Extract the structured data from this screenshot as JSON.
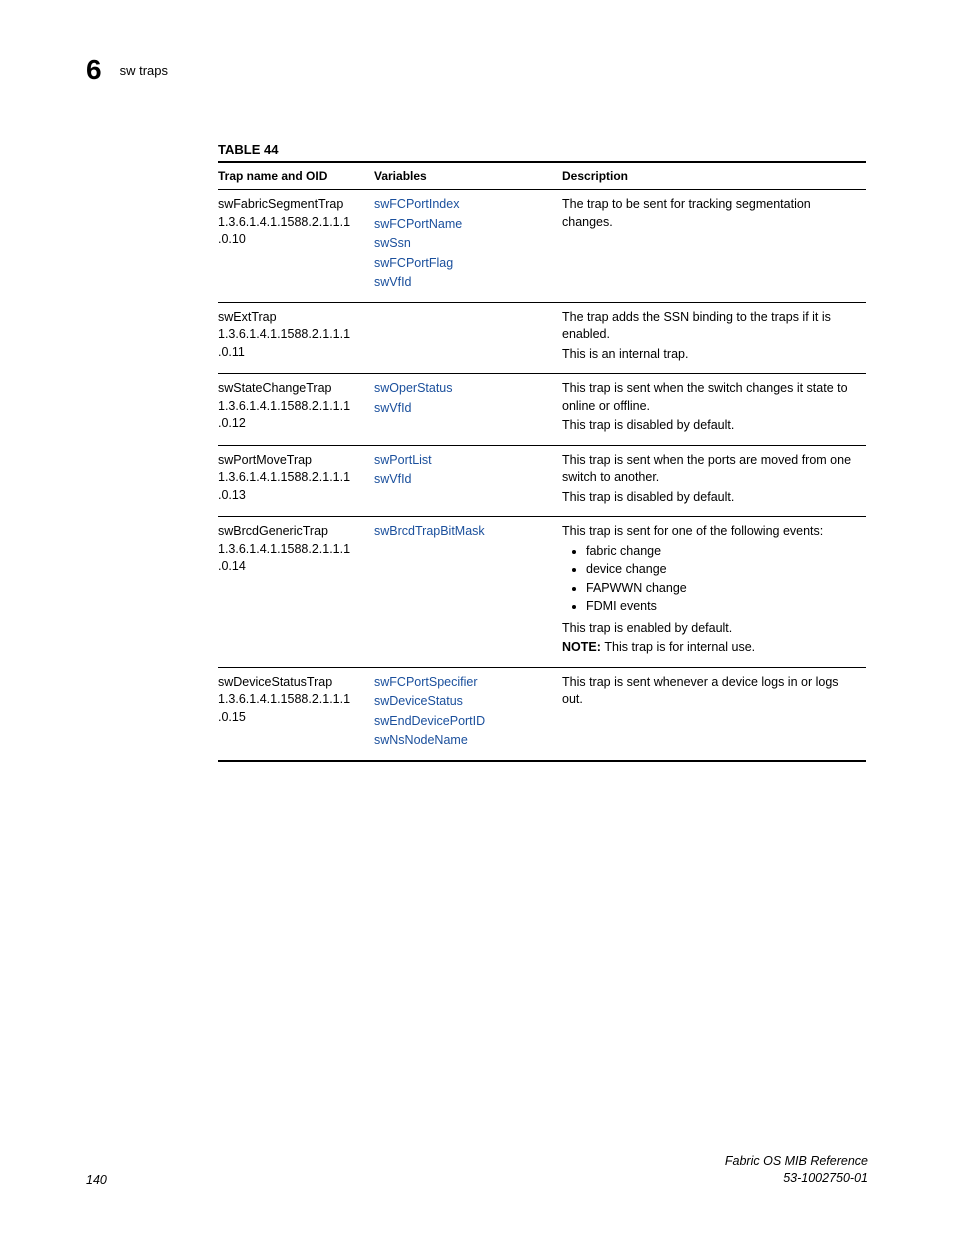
{
  "header": {
    "chapter_number": "6",
    "section_title": "sw traps"
  },
  "table": {
    "caption": "TABLE 44",
    "columns": [
      "Trap name and OID",
      "Variables",
      "Description"
    ],
    "link_color": "#1a4f9c",
    "rows": [
      {
        "name": "swFabricSegmentTrap",
        "oid": "1.3.6.1.4.1.1588.2.1.1.1.0.10",
        "vars": [
          "swFCPortIndex",
          "swFCPortName",
          "swSsn",
          "swFCPortFlag",
          "swVfId"
        ],
        "desc_paras": [
          "The trap to be sent for tracking segmentation changes."
        ],
        "bullets": [],
        "post_paras": [],
        "note": ""
      },
      {
        "name": "swExtTrap",
        "oid": "1.3.6.1.4.1.1588.2.1.1.1.0.11",
        "vars": [],
        "desc_paras": [
          "The trap adds the SSN binding to the traps if it is enabled.",
          "This is an internal trap."
        ],
        "bullets": [],
        "post_paras": [],
        "note": ""
      },
      {
        "name": "swStateChangeTrap",
        "oid": "1.3.6.1.4.1.1588.2.1.1.1.0.12",
        "vars": [
          "swOperStatus",
          "swVfId"
        ],
        "desc_paras": [
          "This trap is sent when the switch changes it state to online or offline.",
          "This trap is disabled by default."
        ],
        "bullets": [],
        "post_paras": [],
        "note": ""
      },
      {
        "name": "swPortMoveTrap",
        "oid": "1.3.6.1.4.1.1588.2.1.1.1.0.13",
        "vars": [
          "swPortList",
          "swVfId"
        ],
        "desc_paras": [
          "This trap is sent when the ports are moved from one switch to another.",
          "This trap is disabled by default."
        ],
        "bullets": [],
        "post_paras": [],
        "note": ""
      },
      {
        "name": "swBrcdGenericTrap",
        "oid": "1.3.6.1.4.1.1588.2.1.1.1.0.14",
        "vars": [
          "swBrcdTrapBitMask"
        ],
        "desc_paras": [
          "This trap is sent for one of the following events:"
        ],
        "bullets": [
          "fabric change",
          "device change",
          "FAPWWN change",
          "FDMI events"
        ],
        "post_paras": [
          "This trap is enabled by default."
        ],
        "note": "This trap is for internal use."
      },
      {
        "name": "swDeviceStatusTrap",
        "oid": "1.3.6.1.4.1.1588.2.1.1.1.0.15",
        "vars": [
          "swFCPortSpecifier",
          "swDeviceStatus",
          "swEndDevicePortID",
          "swNsNodeName"
        ],
        "desc_paras": [
          "This trap is sent whenever a device logs in or logs out."
        ],
        "bullets": [],
        "post_paras": [],
        "note": ""
      }
    ]
  },
  "footer": {
    "page_number": "140",
    "doc_title": "Fabric OS MIB Reference",
    "doc_number": "53-1002750-01",
    "note_label": "NOTE:"
  }
}
